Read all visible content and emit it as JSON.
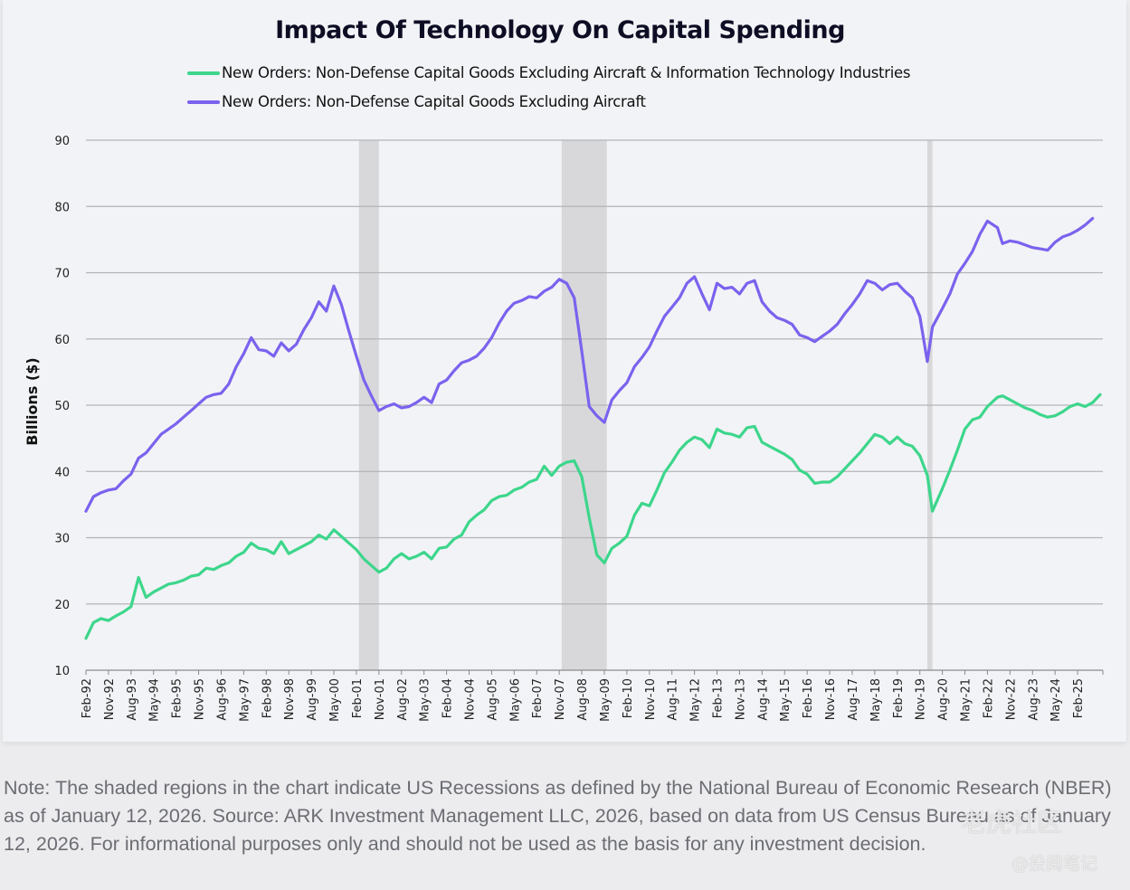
{
  "chart_data": {
    "type": "line",
    "title": "Impact Of Technology On Capital Spending",
    "xlabel": "",
    "ylabel": "Billions ($)",
    "ylim": [
      10,
      90
    ],
    "yticks": [
      10,
      20,
      30,
      40,
      50,
      60,
      70,
      80,
      90
    ],
    "grid": true,
    "legend_position": "top-left",
    "x_start": "1992-02",
    "x_end": "2025-11",
    "xtick_labels": [
      "Feb-92",
      "Nov-92",
      "Aug-93",
      "May-94",
      "Feb-95",
      "Nov-95",
      "Aug-96",
      "May-97",
      "Feb-98",
      "Nov-98",
      "Aug-99",
      "May-00",
      "Feb-01",
      "Nov-01",
      "Aug-02",
      "May-03",
      "Feb-04",
      "Nov-04",
      "Aug-05",
      "May-06",
      "Feb-07",
      "Nov-07",
      "Aug-08",
      "May-09",
      "Feb-10",
      "Nov-10",
      "Aug-11",
      "May-12",
      "Feb-13",
      "Nov-13",
      "Aug-14",
      "May-15",
      "Feb-16",
      "Nov-16",
      "Aug-17",
      "May-18",
      "Feb-19",
      "Nov-19",
      "Aug-20",
      "May-21",
      "Feb-22",
      "Nov-22",
      "Aug-23",
      "May-24",
      "Feb-25"
    ],
    "recessions": [
      {
        "start": "2001-03",
        "end": "2001-11"
      },
      {
        "start": "2007-12",
        "end": "2009-06"
      },
      {
        "start": "2020-02",
        "end": "2020-04"
      }
    ],
    "x": [
      "1992-02",
      "1992-05",
      "1992-08",
      "1992-11",
      "1993-02",
      "1993-05",
      "1993-08",
      "1993-11",
      "1994-02",
      "1994-05",
      "1994-08",
      "1994-11",
      "1995-02",
      "1995-05",
      "1995-08",
      "1995-11",
      "1996-02",
      "1996-05",
      "1996-08",
      "1996-11",
      "1997-02",
      "1997-05",
      "1997-08",
      "1997-11",
      "1998-02",
      "1998-05",
      "1998-08",
      "1998-11",
      "1999-02",
      "1999-05",
      "1999-08",
      "1999-11",
      "2000-02",
      "2000-05",
      "2000-08",
      "2000-11",
      "2001-02",
      "2001-05",
      "2001-08",
      "2001-11",
      "2002-02",
      "2002-05",
      "2002-08",
      "2002-11",
      "2003-02",
      "2003-05",
      "2003-08",
      "2003-11",
      "2004-02",
      "2004-05",
      "2004-08",
      "2004-11",
      "2005-02",
      "2005-05",
      "2005-08",
      "2005-11",
      "2006-02",
      "2006-05",
      "2006-08",
      "2006-11",
      "2007-02",
      "2007-05",
      "2007-08",
      "2007-11",
      "2008-02",
      "2008-05",
      "2008-08",
      "2008-11",
      "2009-02",
      "2009-05",
      "2009-08",
      "2009-11",
      "2010-02",
      "2010-05",
      "2010-08",
      "2010-11",
      "2011-02",
      "2011-05",
      "2011-08",
      "2011-11",
      "2012-02",
      "2012-05",
      "2012-08",
      "2012-11",
      "2013-02",
      "2013-05",
      "2013-08",
      "2013-11",
      "2014-02",
      "2014-05",
      "2014-08",
      "2014-11",
      "2015-02",
      "2015-05",
      "2015-08",
      "2015-11",
      "2016-02",
      "2016-05",
      "2016-08",
      "2016-11",
      "2017-02",
      "2017-05",
      "2017-08",
      "2017-11",
      "2018-02",
      "2018-05",
      "2018-08",
      "2018-11",
      "2019-02",
      "2019-05",
      "2019-08",
      "2019-11",
      "2020-02",
      "2020-04",
      "2020-08",
      "2020-11",
      "2021-02",
      "2021-05",
      "2021-08",
      "2021-11",
      "2022-02",
      "2022-06",
      "2022-08",
      "2022-11",
      "2023-02",
      "2023-05",
      "2023-08",
      "2023-11",
      "2024-02",
      "2024-05",
      "2024-08",
      "2024-11",
      "2025-02",
      "2025-05",
      "2025-08",
      "2025-11"
    ],
    "series": [
      {
        "name": "New Orders: Non-Defense Capital Goods Excluding Aircraft & Information Technology Industries",
        "color": "#3dd68c",
        "values": [
          14.8,
          17.2,
          17.8,
          17.5,
          18.2,
          18.8,
          19.6,
          24,
          21,
          21.8,
          22.4,
          23,
          23.2,
          23.6,
          24.2,
          24.4,
          25.4,
          25.2,
          25.8,
          26.2,
          27.2,
          27.8,
          29.2,
          28.4,
          28.2,
          27.6,
          29.4,
          27.6,
          28.2,
          28.8,
          29.4,
          30.4,
          29.8,
          31.2,
          30.2,
          29.2,
          28.2,
          26.8,
          25.8,
          24.8,
          25.4,
          26.8,
          27.6,
          26.8,
          27.2,
          27.8,
          26.8,
          28.4,
          28.6,
          29.8,
          30.4,
          32.4,
          33.4,
          34.2,
          35.6,
          36.2,
          36.4,
          37.2,
          37.6,
          38.4,
          38.8,
          40.8,
          39.4,
          40.8,
          41.4,
          41.6,
          39.2,
          33,
          27.4,
          26.2,
          28.4,
          29.2,
          30.2,
          33.4,
          35.2,
          34.8,
          37.2,
          39.8,
          41.4,
          43.2,
          44.4,
          45.2,
          44.8,
          43.6,
          46.4,
          45.8,
          45.6,
          45.2,
          46.6,
          46.8,
          44.4,
          43.8,
          43.2,
          42.6,
          41.8,
          40.2,
          39.6,
          38.2,
          38.4,
          38.4,
          39.2,
          40.4,
          41.6,
          42.8,
          44.2,
          45.6,
          45.2,
          44.2,
          45.2,
          44.2,
          43.8,
          42.4,
          39.4,
          34,
          37.4,
          40.2,
          43.2,
          46.4,
          47.8,
          48.2,
          49.8,
          51.2,
          51.4,
          50.8,
          50.2,
          49.6,
          49.2,
          48.6,
          48.2,
          48.4,
          49,
          49.8,
          50.2,
          49.8,
          50.4,
          51.6
        ]
      },
      {
        "name": "New Orders: Non-Defense Capital Goods Excluding Aircraft",
        "color": "#7b62ee",
        "values": [
          34,
          36.2,
          36.8,
          37.2,
          37.4,
          38.6,
          39.6,
          42,
          42.8,
          44.2,
          45.6,
          46.4,
          47.2,
          48.2,
          49.2,
          50.2,
          51.2,
          51.6,
          51.8,
          53.2,
          55.8,
          57.8,
          60.2,
          58.4,
          58.2,
          57.4,
          59.4,
          58.2,
          59.2,
          61.4,
          63.2,
          65.6,
          64.2,
          68,
          65.2,
          61.2,
          57.4,
          53.8,
          51.4,
          49.2,
          49.8,
          50.2,
          49.6,
          49.8,
          50.4,
          51.2,
          50.4,
          53.2,
          53.8,
          55.2,
          56.4,
          56.8,
          57.4,
          58.6,
          60.2,
          62.4,
          64.2,
          65.4,
          65.8,
          66.4,
          66.2,
          67.2,
          67.8,
          69,
          68.4,
          66.2,
          58.2,
          49.8,
          48.4,
          47.4,
          50.8,
          52.2,
          53.4,
          55.8,
          57.2,
          58.8,
          61.2,
          63.4,
          64.8,
          66.2,
          68.4,
          69.4,
          66.8,
          64.4,
          68.4,
          67.6,
          67.8,
          66.8,
          68.4,
          68.8,
          65.6,
          64.2,
          63.2,
          62.8,
          62.2,
          60.6,
          60.2,
          59.6,
          60.4,
          61.2,
          62.2,
          63.8,
          65.2,
          66.8,
          68.8,
          68.4,
          67.4,
          68.2,
          68.4,
          67.2,
          66.2,
          63.4,
          56.6,
          61.8,
          64.6,
          66.8,
          69.8,
          71.4,
          73.2,
          75.8,
          77.8,
          76.8,
          74.4,
          74.8,
          74.6,
          74.2,
          73.8,
          73.6,
          73.4,
          74.6,
          75.4,
          75.8,
          76.4,
          77.2,
          78.2
        ]
      }
    ]
  },
  "note": "Note: The shaded regions in the chart indicate US Recessions as defined by the National Bureau of Economic Research (NBER) as of January 12, 2026. Source: ARK Investment Management LLC, 2026, based on data from US Census Bureau as of January 12, 2026. For informational purposes only and should not be used as the basis for any investment decision.",
  "watermarks": [
    "老虎社区",
    "@投阅笔记"
  ]
}
